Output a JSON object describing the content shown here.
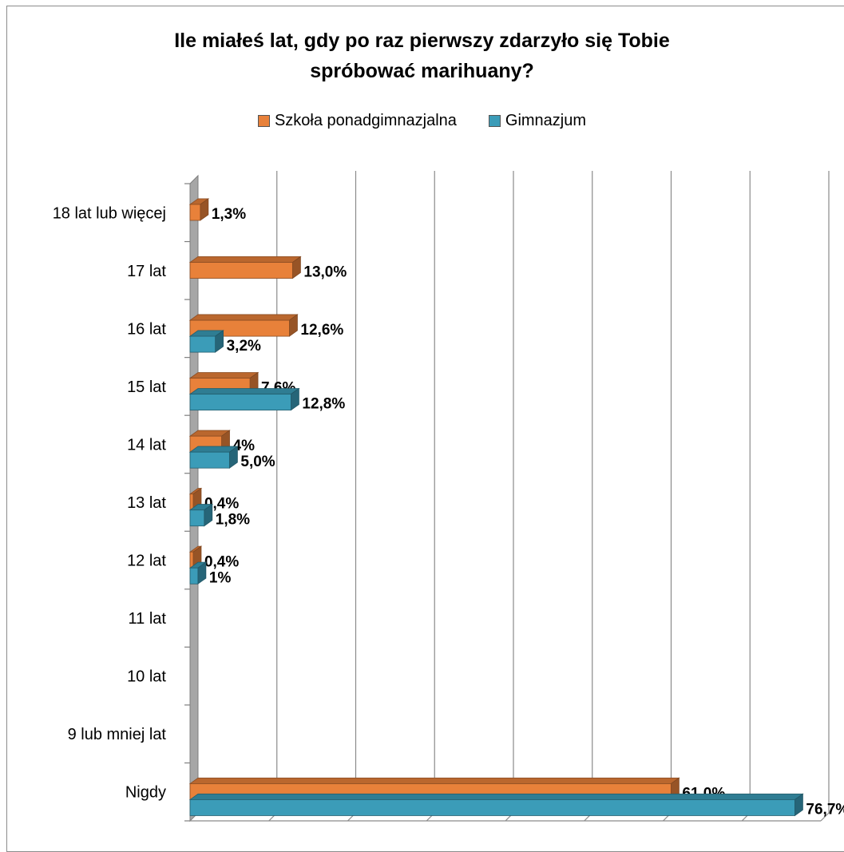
{
  "chart_data": {
    "type": "bar",
    "orientation": "horizontal",
    "title": "Ile miałeś lat, gdy po raz pierwszy zdarzyło się Tobie spróbować marihuany?",
    "title_lines": [
      "Ile miałeś lat, gdy po raz pierwszy zdarzyło się Tobie",
      "spróbować marihuany?"
    ],
    "legend_position": "top",
    "grid": true,
    "xlim": [
      0,
      80
    ],
    "categories": [
      "18 lat lub więcej",
      "17 lat",
      "16 lat",
      "15 lat",
      "14 lat ",
      "13 lat",
      "12 lat",
      "11 lat",
      "10 lat",
      "9 lub mniej lat",
      "Nigdy"
    ],
    "series": [
      {
        "name": "Szkoła ponadgimnazjalna",
        "color": "#e8813a",
        "values": [
          1.3,
          13.0,
          12.6,
          7.6,
          4,
          0.4,
          0.4,
          null,
          null,
          null,
          61.0
        ],
        "labels": [
          "1,3%",
          "13,0%",
          "12,6%",
          "7,6%",
          "4%",
          "0,4%",
          "0,4%",
          "",
          "",
          "",
          "61,0%"
        ]
      },
      {
        "name": "Gimnazjum",
        "color": "#3b9cb8",
        "values": [
          null,
          null,
          3.2,
          12.8,
          5.0,
          1.8,
          1,
          null,
          null,
          null,
          76.7
        ],
        "labels": [
          "",
          "",
          "3,2%",
          "12,8%",
          "5,0%",
          "1,8%",
          "1%",
          "",
          "",
          "",
          "76,7%"
        ]
      }
    ]
  }
}
